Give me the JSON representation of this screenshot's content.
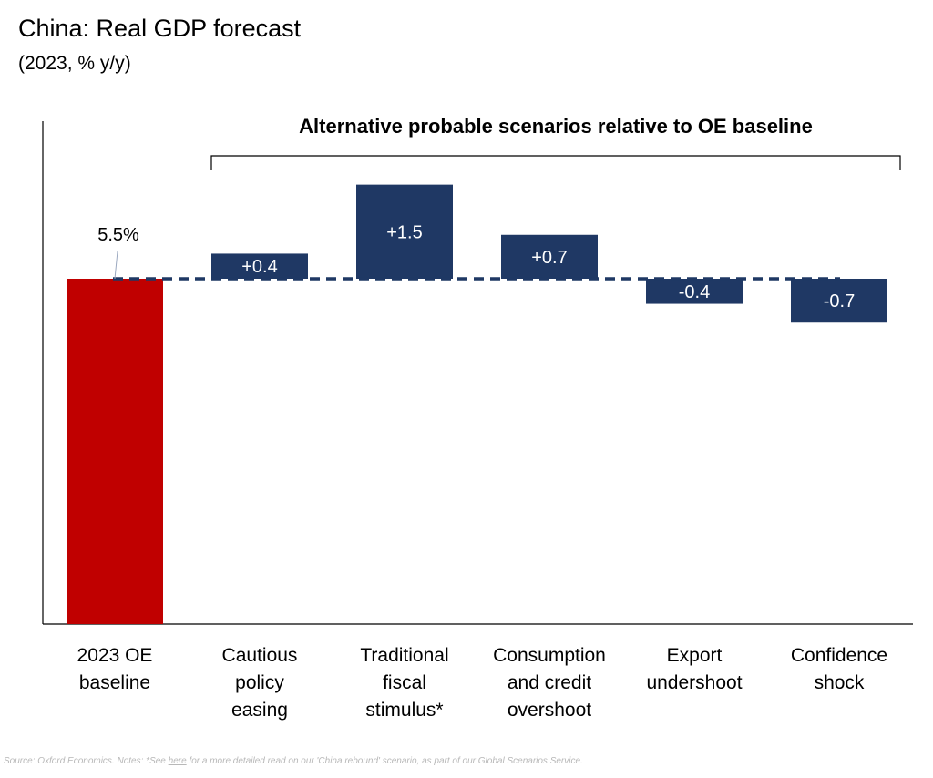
{
  "chart_data": {
    "type": "bar",
    "title": "China: Real GDP forecast",
    "subtitle": "(2023, % y/y)",
    "annotation": "Alternative probable scenarios relative to OE baseline",
    "baseline": {
      "category": [
        "2023 OE",
        "baseline"
      ],
      "value": 5.5,
      "label": "5.5%",
      "color": "#c00000"
    },
    "scenarios": [
      {
        "category": [
          "Cautious",
          "policy",
          "easing"
        ],
        "delta": 0.4,
        "label": "+0.4"
      },
      {
        "category": [
          "Traditional",
          "fiscal",
          "stimulus*"
        ],
        "delta": 1.5,
        "label": "+1.5"
      },
      {
        "category": [
          "Consumption",
          "and credit",
          "overshoot"
        ],
        "delta": 0.7,
        "label": "+0.7"
      },
      {
        "category": [
          "Export",
          "undershoot"
        ],
        "delta": -0.4,
        "label": "-0.4"
      },
      {
        "category": [
          "Confidence",
          "shock"
        ],
        "delta": -0.7,
        "label": "-0.7"
      }
    ],
    "scenario_color": "#1f3864",
    "ylim": [
      0,
      7.5
    ],
    "grid": false
  },
  "footer": {
    "source_before": "Source: Oxford Economics. Notes: *See ",
    "source_link": "here",
    "source_after": " for a more detailed read on our 'China rebound' scenario, as part of our Global Scenarios Service."
  }
}
